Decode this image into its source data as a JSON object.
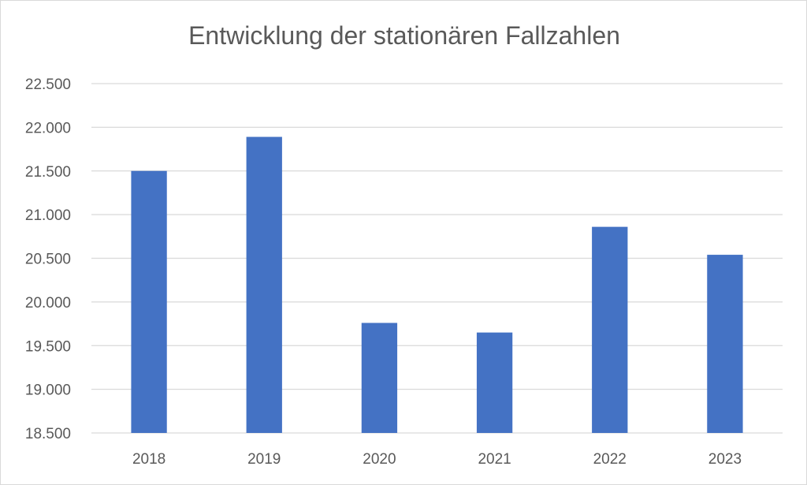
{
  "chart_data": {
    "type": "bar",
    "title": "Entwicklung der stationären Fallzahlen",
    "xlabel": "",
    "ylabel": "",
    "categories": [
      "2018",
      "2019",
      "2020",
      "2021",
      "2022",
      "2023"
    ],
    "values": [
      21500,
      21890,
      19760,
      19650,
      20860,
      20540
    ],
    "ylim": [
      18500,
      22500
    ],
    "yticks": [
      18500,
      19000,
      19500,
      20000,
      20500,
      21000,
      21500,
      22000,
      22500
    ],
    "ytick_labels": [
      "18.500",
      "19.000",
      "19.500",
      "20.000",
      "20.500",
      "21.000",
      "21.500",
      "22.000",
      "22.500"
    ],
    "grid": true,
    "legend": "none",
    "bar_color": "#4472c4",
    "grid_color": "#d9d9d9"
  }
}
